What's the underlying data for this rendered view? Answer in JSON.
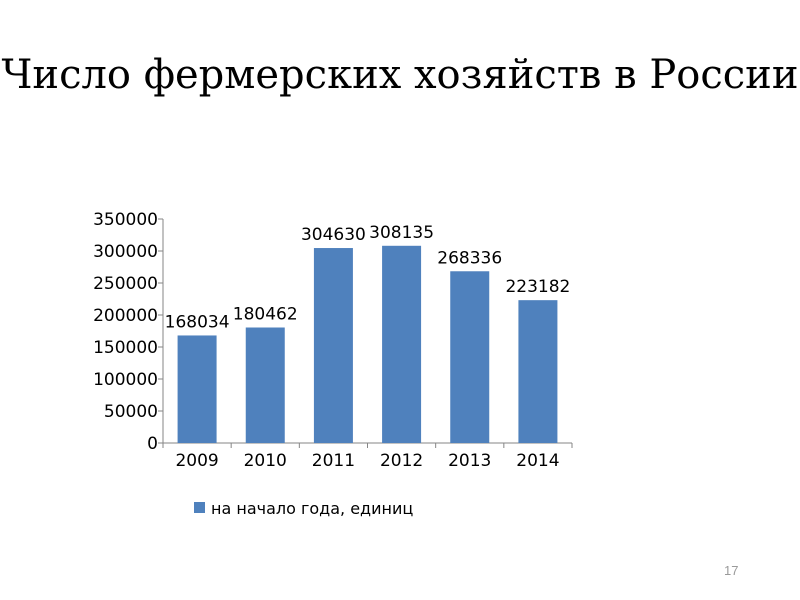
{
  "slide": {
    "title": "Число фермерских хозяйств в России",
    "page_number": "17"
  },
  "chart_data": {
    "type": "bar",
    "title": "",
    "xlabel": "",
    "ylabel": "",
    "categories": [
      "2009",
      "2010",
      "2011",
      "2012",
      "2013",
      "2014"
    ],
    "series": [
      {
        "name": "на начало года, единиц",
        "values": [
          168034,
          180462,
          304630,
          308135,
          268336,
          223182
        ],
        "color": "#4f81bd"
      }
    ],
    "ylim": [
      0,
      350000
    ],
    "yticks": [
      "0",
      "50000",
      "100000",
      "150000",
      "200000",
      "250000",
      "300000",
      "350000"
    ],
    "data_labels": [
      "168034",
      "180462",
      "304630",
      "308135",
      "268336",
      "223182"
    ],
    "grid": false,
    "legend": "bottom"
  }
}
